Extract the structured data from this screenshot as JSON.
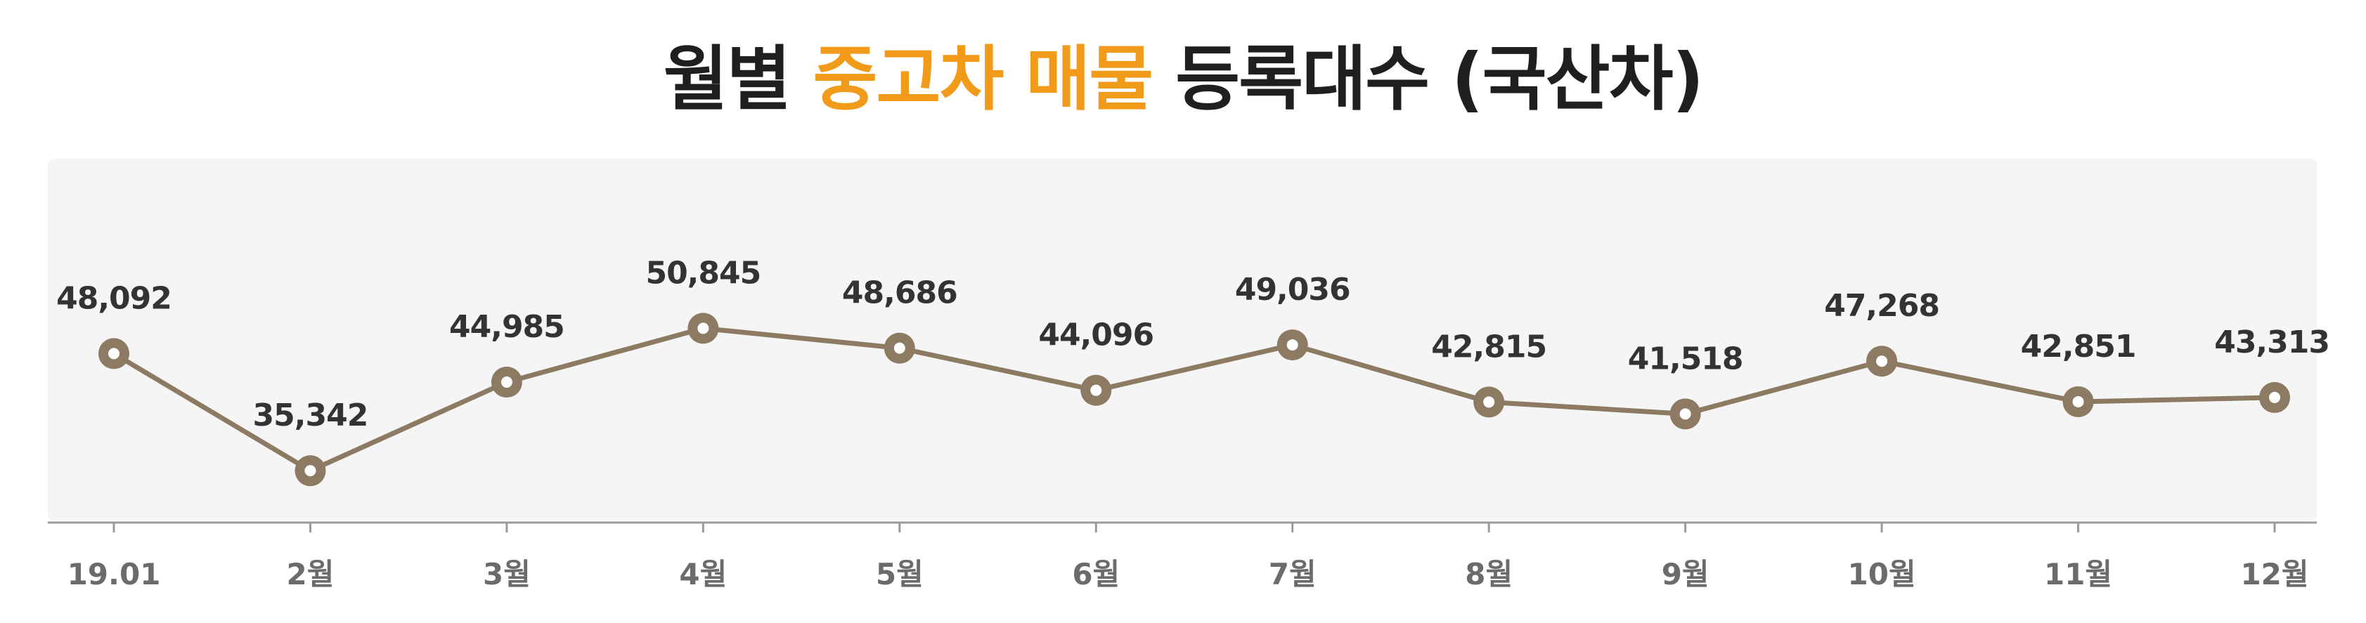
{
  "title": {
    "part1": "월별 ",
    "part2": "중고차 매물",
    "part3": " 등록대수 (국산차)"
  },
  "colors": {
    "title": "#1f1f1f",
    "accent": "#f29a1a",
    "panel": "#f5f5f5",
    "line": "#8c7a62",
    "marker_fill": "#ffffff",
    "value_label": "#333333",
    "tick_label": "#6b6b6b",
    "axis": "#9a9a9a"
  },
  "chart_data": {
    "type": "line",
    "title": "월별 중고차 매물 등록대수 (국산차)",
    "categories": [
      "19.01",
      "2월",
      "3월",
      "4월",
      "5월",
      "6월",
      "7월",
      "8월",
      "9월",
      "10월",
      "11월",
      "12월"
    ],
    "series": [
      {
        "values": [
          48092,
          35342,
          44985,
          50845,
          48686,
          44096,
          49036,
          42815,
          41518,
          47268,
          42851,
          43313
        ],
        "labels": [
          "48,092",
          "35,342",
          "44,985",
          "50,845",
          "48,686",
          "44,096",
          "49,036",
          "42,815",
          "41,518",
          "47,268",
          "42,851",
          "43,313"
        ]
      }
    ],
    "xlabel": "",
    "ylabel": "",
    "ylim": [
      30000,
      56000
    ],
    "grid": false,
    "legend": "none",
    "data_labels": true
  }
}
